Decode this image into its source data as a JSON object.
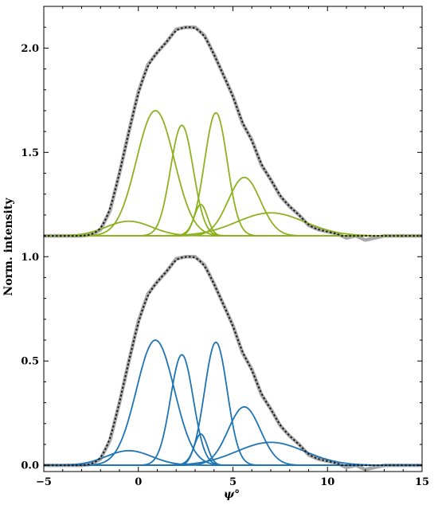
{
  "chart_data": {
    "type": "line",
    "title": "",
    "xlabel": "ψ°",
    "ylabel": "Norm. intensity",
    "xlim": [
      -5,
      15
    ],
    "ylim": [
      -0.03,
      2.2
    ],
    "x_ticks": [
      -5,
      0,
      5,
      10,
      15
    ],
    "y_ticks": [
      0.0,
      0.5,
      1.0,
      1.5,
      2.0
    ],
    "x_tick_labels": [
      "−5",
      "0",
      "5",
      "10",
      "15"
    ],
    "y_tick_labels": [
      "0.0",
      "0.5",
      "1.0",
      "1.5",
      "2.0"
    ],
    "grid": false,
    "legend": "none",
    "colors": {
      "upper_components": "#8db21f",
      "lower_components": "#1f74b4",
      "measured": "#a9a9a9",
      "fit": "#1a1a1a"
    },
    "offset_upper": 1.1,
    "components": [
      {
        "center": -0.5,
        "amplitude": 0.07,
        "width": 1.2
      },
      {
        "center": 0.9,
        "amplitude": 0.6,
        "width": 1.0
      },
      {
        "center": 2.3,
        "amplitude": 0.53,
        "width": 0.6
      },
      {
        "center": 3.3,
        "amplitude": 0.15,
        "width": 0.35
      },
      {
        "center": 4.1,
        "amplitude": 0.59,
        "width": 0.6
      },
      {
        "center": 5.6,
        "amplitude": 0.28,
        "width": 0.85
      },
      {
        "center": 7.0,
        "amplitude": 0.11,
        "width": 1.8
      }
    ],
    "measured": {
      "x": [
        -5,
        -4,
        -3,
        -2.5,
        -2,
        -1.5,
        -1,
        -0.5,
        0,
        0.5,
        1,
        1.5,
        2,
        2.5,
        3,
        3.5,
        4,
        4.5,
        5,
        5.5,
        6,
        6.5,
        7,
        7.5,
        8,
        8.5,
        9,
        9.5,
        10,
        10.5,
        11,
        11.5,
        12,
        12.5,
        13,
        14,
        15
      ],
      "y": [
        0.0,
        0.0,
        0.0,
        0.005,
        0.03,
        0.12,
        0.3,
        0.5,
        0.69,
        0.82,
        0.88,
        0.93,
        0.99,
        1.0,
        1.0,
        0.96,
        0.87,
        0.77,
        0.67,
        0.54,
        0.46,
        0.34,
        0.27,
        0.19,
        0.14,
        0.1,
        0.05,
        0.03,
        0.02,
        0.01,
        -0.01,
        0.0,
        -0.02,
        -0.01,
        0.0,
        0.0,
        0.0
      ]
    }
  }
}
